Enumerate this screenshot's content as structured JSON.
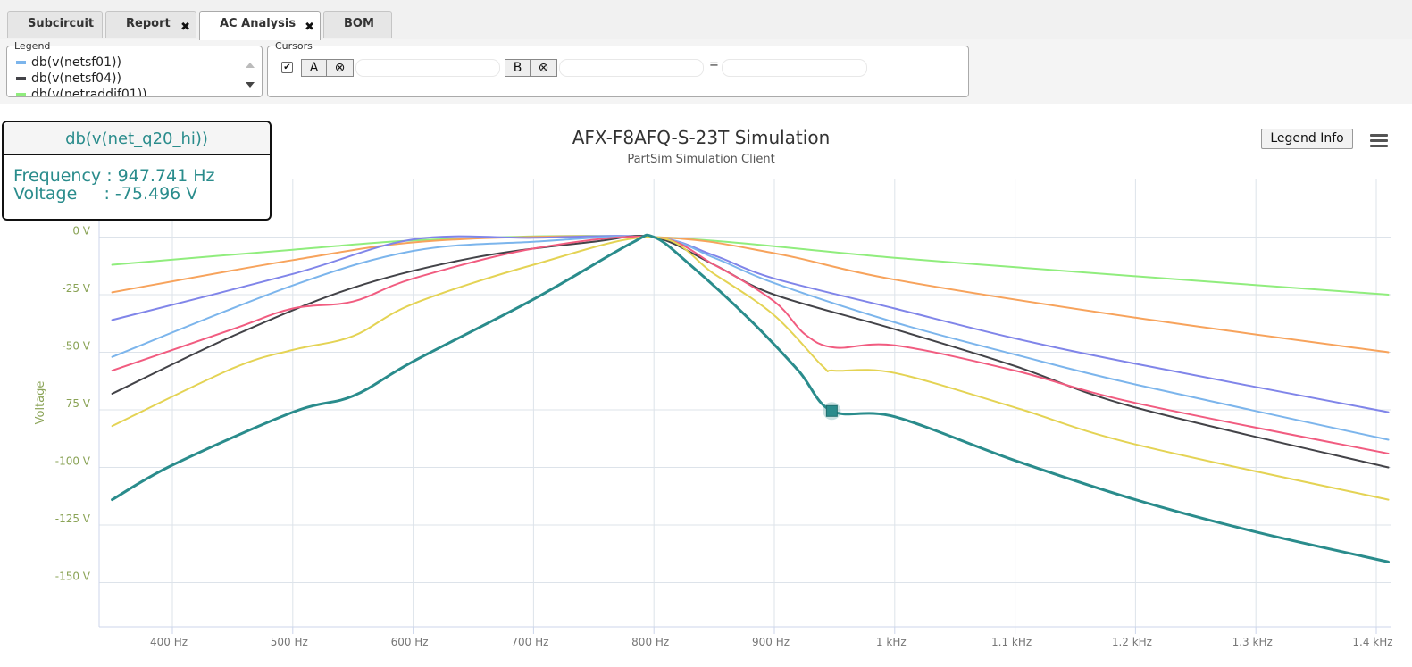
{
  "tabs": [
    {
      "label": "Subcircuit",
      "closable": false,
      "active": false
    },
    {
      "label": "Report",
      "closable": true,
      "active": false
    },
    {
      "label": "AC Analysis",
      "closable": true,
      "active": true
    },
    {
      "label": "BOM",
      "closable": false,
      "active": false
    }
  ],
  "toolbar": {
    "legend_title": "Legend",
    "legend_items": [
      {
        "label": "db(v(netsf01))",
        "color": "#7cb5ec"
      },
      {
        "label": "db(v(netsf04))",
        "color": "#434348"
      },
      {
        "label": "db(v(netraddif01))",
        "color": "#90ed7d"
      }
    ],
    "cursors_title": "Cursors",
    "cursor_a_label": "A",
    "cursor_b_label": "B",
    "clear_symbol": "⊗",
    "equals": "=",
    "cursors_enabled": true
  },
  "tooltip": {
    "series": "db(v(net_q20_hi))",
    "frequency_label": "Frequency : ",
    "frequency_value": "947.741 Hz",
    "voltage_label": "Voltage     : ",
    "voltage_value": "-75.496 V"
  },
  "legend_info_label": "Legend Info",
  "colors": {
    "axis_label": "#8aa356",
    "highlight": "#2a8c8c"
  },
  "chart_data": {
    "type": "line",
    "title": "AFX-F8AFQ-S-23T Simulation",
    "subtitle": "PartSim Simulation Client",
    "ylabel": "Voltage",
    "xlabel": "",
    "x_unit": "Hz",
    "xlim": [
      338,
      1412
    ],
    "ylim": [
      -170,
      10
    ],
    "x_ticks": [
      400,
      500,
      600,
      700,
      800,
      900,
      1000,
      1100,
      1200,
      1300,
      1400
    ],
    "x_tick_labels": [
      "400 Hz",
      "500 Hz",
      "600 Hz",
      "700 Hz",
      "800 Hz",
      "900 Hz",
      "1 kHz",
      "1.1 kHz",
      "1.2 kHz",
      "1.3 kHz",
      "1.4 kHz"
    ],
    "y_ticks": [
      0,
      -25,
      -50,
      -75,
      -100,
      -125,
      -150
    ],
    "y_tick_labels": [
      "0 V",
      "-25 V",
      "-50 V",
      "-75 V",
      "-100 V",
      "-125 V",
      "-150 V"
    ],
    "grid": true,
    "series": [
      {
        "name": "db(v(netraddif01))",
        "color": "#90ed7d",
        "width": 2,
        "points": [
          [
            350,
            -12
          ],
          [
            500,
            -5.5
          ],
          [
            620,
            -1
          ],
          [
            800,
            0
          ],
          [
            1000,
            -9
          ],
          [
            1200,
            -17
          ],
          [
            1410,
            -25
          ]
        ]
      },
      {
        "name": "",
        "color": "#f7a35c",
        "width": 2,
        "points": [
          [
            350,
            -24
          ],
          [
            500,
            -10
          ],
          [
            620,
            -1.5
          ],
          [
            800,
            0
          ],
          [
            900,
            -7
          ],
          [
            1000,
            -18.5
          ],
          [
            1200,
            -35
          ],
          [
            1410,
            -50
          ]
        ]
      },
      {
        "name": "",
        "color": "#8085e9",
        "width": 2,
        "points": [
          [
            350,
            -36
          ],
          [
            500,
            -16
          ],
          [
            600,
            -1
          ],
          [
            700,
            -0.3
          ],
          [
            800,
            0
          ],
          [
            850,
            -8
          ],
          [
            900,
            -18
          ],
          [
            1000,
            -31
          ],
          [
            1100,
            -44
          ],
          [
            1200,
            -55
          ],
          [
            1410,
            -76
          ]
        ]
      },
      {
        "name": "db(v(netsf01))",
        "color": "#7cb5ec",
        "width": 2,
        "points": [
          [
            350,
            -52
          ],
          [
            500,
            -21
          ],
          [
            600,
            -6
          ],
          [
            700,
            -2
          ],
          [
            800,
            0
          ],
          [
            850,
            -9
          ],
          [
            900,
            -20
          ],
          [
            1000,
            -37
          ],
          [
            1100,
            -51
          ],
          [
            1200,
            -64
          ],
          [
            1410,
            -88
          ]
        ]
      },
      {
        "name": "db(v(netsf04))",
        "color": "#434348",
        "width": 2,
        "points": [
          [
            350,
            -68
          ],
          [
            450,
            -43
          ],
          [
            550,
            -22
          ],
          [
            650,
            -9
          ],
          [
            750,
            -2
          ],
          [
            800,
            0
          ],
          [
            850,
            -12
          ],
          [
            900,
            -25
          ],
          [
            1000,
            -40
          ],
          [
            1100,
            -56
          ],
          [
            1200,
            -74
          ],
          [
            1410,
            -100
          ]
        ]
      },
      {
        "name": "",
        "color": "#f15c80",
        "width": 2,
        "points": [
          [
            350,
            -58
          ],
          [
            450,
            -40
          ],
          [
            500,
            -31
          ],
          [
            550,
            -28
          ],
          [
            600,
            -18
          ],
          [
            700,
            -5
          ],
          [
            800,
            0
          ],
          [
            850,
            -12
          ],
          [
            900,
            -28
          ],
          [
            925,
            -42
          ],
          [
            950,
            -48
          ],
          [
            1000,
            -47
          ],
          [
            1100,
            -58
          ],
          [
            1200,
            -72
          ],
          [
            1410,
            -94
          ]
        ]
      },
      {
        "name": "",
        "color": "#e4d354",
        "width": 2,
        "points": [
          [
            350,
            -82
          ],
          [
            450,
            -57
          ],
          [
            500,
            -49
          ],
          [
            550,
            -43
          ],
          [
            600,
            -29
          ],
          [
            700,
            -12
          ],
          [
            800,
            0
          ],
          [
            850,
            -16
          ],
          [
            900,
            -34
          ],
          [
            940,
            -56
          ],
          [
            950,
            -58
          ],
          [
            1000,
            -59
          ],
          [
            1100,
            -74
          ],
          [
            1200,
            -90
          ],
          [
            1410,
            -114
          ]
        ]
      },
      {
        "name": "db(v(net_q20_hi))",
        "color": "#2a8c8c",
        "width": 3,
        "points": [
          [
            350,
            -114
          ],
          [
            400,
            -99
          ],
          [
            500,
            -76
          ],
          [
            550,
            -69
          ],
          [
            600,
            -54
          ],
          [
            700,
            -27
          ],
          [
            780,
            -3
          ],
          [
            800,
            0
          ],
          [
            830,
            -12
          ],
          [
            880,
            -36
          ],
          [
            920,
            -58
          ],
          [
            947.741,
            -75.496
          ],
          [
            1000,
            -78
          ],
          [
            1100,
            -97
          ],
          [
            1200,
            -114
          ],
          [
            1300,
            -128
          ],
          [
            1410,
            -141
          ]
        ]
      }
    ],
    "marker": {
      "x": 947.741,
      "y": -75.496
    }
  }
}
